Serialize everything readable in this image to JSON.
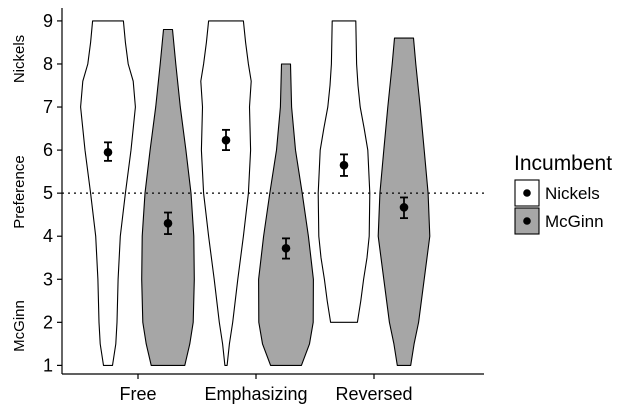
{
  "chart_data": {
    "type": "violin",
    "title": "",
    "xlabel": "",
    "ylabel": {
      "top": "Nickels",
      "middle": "Preference",
      "bottom": "McGinn"
    },
    "categories": [
      "Free",
      "Emphasizing",
      "Reversed"
    ],
    "y_ticks": [
      1,
      2,
      3,
      4,
      5,
      6,
      7,
      8,
      9
    ],
    "ylim": [
      0.8,
      9.3
    ],
    "reference_line": {
      "y": 5,
      "style": "dotted"
    },
    "legend": {
      "title": "Incumbent",
      "placement": "right",
      "entries": [
        {
          "name": "Nickels",
          "color": "#ffffff"
        },
        {
          "name": "McGinn",
          "color": "#a6a6a6"
        }
      ]
    },
    "series": [
      {
        "name": "Nickels",
        "fill": "#ffffff",
        "points": [
          {
            "category": "Free",
            "mean": 5.95,
            "error_low": 5.75,
            "error_high": 6.18
          },
          {
            "category": "Emphasizing",
            "mean": 6.23,
            "error_low": 6.0,
            "error_high": 6.47
          },
          {
            "category": "Reversed",
            "mean": 5.65,
            "error_low": 5.4,
            "error_high": 5.9
          }
        ],
        "violins": [
          {
            "category": "Free",
            "min": 1,
            "max": 9,
            "profile": [
              [
                1,
                0.16
              ],
              [
                1.5,
                0.28
              ],
              [
                2,
                0.32
              ],
              [
                3,
                0.36
              ],
              [
                4,
                0.44
              ],
              [
                5,
                0.62
              ],
              [
                6,
                0.82
              ],
              [
                7,
                0.98
              ],
              [
                7.6,
                0.9
              ],
              [
                8,
                0.72
              ],
              [
                8.5,
                0.62
              ],
              [
                9,
                0.55
              ]
            ]
          },
          {
            "category": "Emphasizing",
            "min": 1,
            "max": 9,
            "profile": [
              [
                1,
                0.04
              ],
              [
                1.5,
                0.12
              ],
              [
                2,
                0.24
              ],
              [
                3,
                0.42
              ],
              [
                4,
                0.62
              ],
              [
                5,
                0.8
              ],
              [
                6,
                0.88
              ],
              [
                7,
                0.84
              ],
              [
                7.6,
                0.9
              ],
              [
                8,
                0.8
              ],
              [
                8.5,
                0.7
              ],
              [
                9,
                0.62
              ]
            ]
          },
          {
            "category": "Reversed",
            "min": 2,
            "max": 9,
            "profile": [
              [
                2,
                0.48
              ],
              [
                2.5,
                0.6
              ],
              [
                3,
                0.7
              ],
              [
                3.5,
                0.82
              ],
              [
                4,
                0.9
              ],
              [
                5,
                0.92
              ],
              [
                6,
                0.85
              ],
              [
                6.5,
                0.72
              ],
              [
                7,
                0.58
              ],
              [
                7.5,
                0.5
              ],
              [
                8,
                0.45
              ],
              [
                9,
                0.42
              ]
            ]
          }
        ]
      },
      {
        "name": "McGinn",
        "fill": "#a6a6a6",
        "points": [
          {
            "category": "Free",
            "mean": 4.3,
            "error_low": 4.05,
            "error_high": 4.55
          },
          {
            "category": "Emphasizing",
            "mean": 3.72,
            "error_low": 3.48,
            "error_high": 3.95
          },
          {
            "category": "Reversed",
            "mean": 4.67,
            "error_low": 4.42,
            "error_high": 4.9
          }
        ],
        "violins": [
          {
            "category": "Free",
            "min": 1,
            "max": 8.8,
            "profile": [
              [
                1,
                0.6
              ],
              [
                1.5,
                0.78
              ],
              [
                2,
                0.9
              ],
              [
                3,
                0.94
              ],
              [
                4,
                0.92
              ],
              [
                5,
                0.82
              ],
              [
                6,
                0.64
              ],
              [
                7,
                0.44
              ],
              [
                8,
                0.28
              ],
              [
                8.8,
                0.16
              ]
            ]
          },
          {
            "category": "Emphasizing",
            "min": 1,
            "max": 8,
            "profile": [
              [
                1,
                0.55
              ],
              [
                1.5,
                0.84
              ],
              [
                2,
                0.97
              ],
              [
                3,
                0.98
              ],
              [
                4,
                0.8
              ],
              [
                5,
                0.58
              ],
              [
                6,
                0.34
              ],
              [
                7,
                0.2
              ],
              [
                8,
                0.16
              ]
            ]
          },
          {
            "category": "Reversed",
            "min": 1,
            "max": 8.6,
            "profile": [
              [
                1,
                0.24
              ],
              [
                1.5,
                0.36
              ],
              [
                2,
                0.52
              ],
              [
                3,
                0.72
              ],
              [
                4,
                0.92
              ],
              [
                5,
                0.86
              ],
              [
                6,
                0.72
              ],
              [
                7,
                0.58
              ],
              [
                8,
                0.42
              ],
              [
                8.6,
                0.34
              ]
            ]
          }
        ]
      }
    ]
  }
}
